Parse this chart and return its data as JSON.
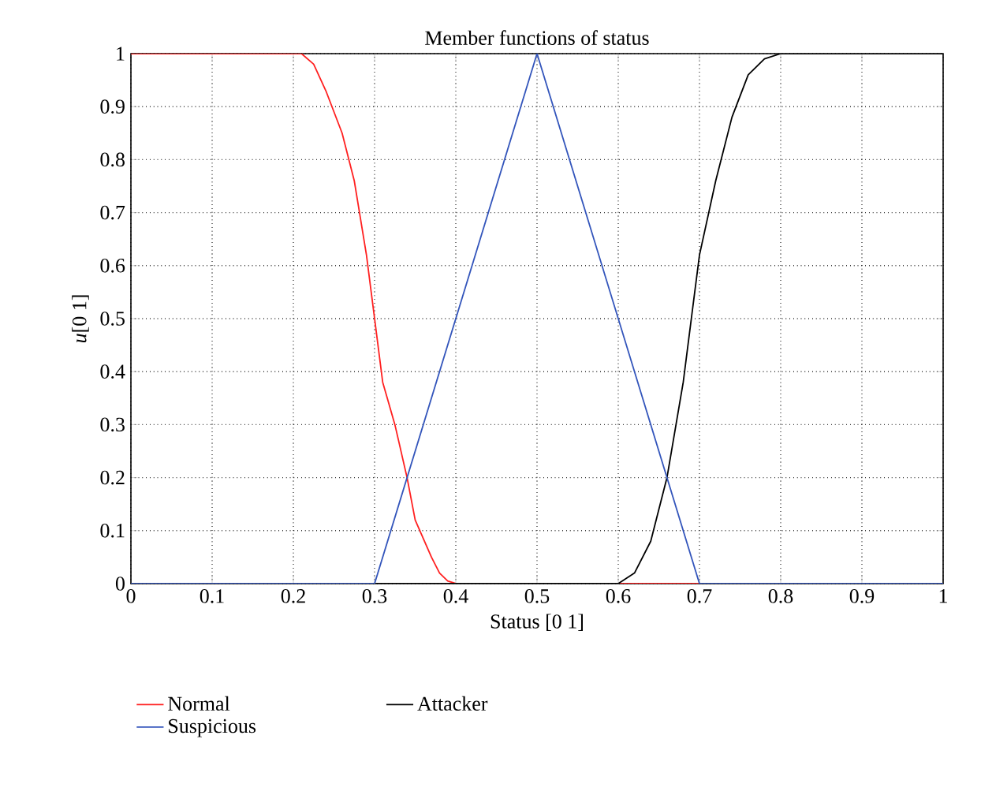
{
  "chart_data": {
    "type": "line",
    "title": "Member functions of status",
    "xlabel": "Status [0 1]",
    "ylabel": "*u*[0 1]",
    "xlim": [
      0,
      1
    ],
    "ylim": [
      0,
      1
    ],
    "xticks": [
      0,
      0.1,
      0.2,
      0.3,
      0.4,
      0.5,
      0.6,
      0.7,
      0.8,
      0.9,
      1
    ],
    "yticks": [
      0,
      0.1,
      0.2,
      0.3,
      0.4,
      0.5,
      0.6,
      0.7,
      0.8,
      0.9,
      1
    ],
    "grid": true,
    "legend": "bottom",
    "line_style": "solid",
    "marker": "none",
    "series": [
      {
        "name": "Normal",
        "color": "#ff2020",
        "x": [
          0,
          0.2,
          0.21,
          0.225,
          0.24,
          0.26,
          0.275,
          0.29,
          0.3,
          0.31,
          0.325,
          0.34,
          0.35,
          0.37,
          0.38,
          0.39,
          0.4,
          1
        ],
        "values": [
          1,
          1,
          1,
          0.98,
          0.93,
          0.85,
          0.76,
          0.62,
          0.5,
          0.38,
          0.3,
          0.2,
          0.12,
          0.05,
          0.02,
          0.005,
          0,
          0
        ]
      },
      {
        "name": "Suspicious",
        "color": "#3355bb",
        "x": [
          0,
          0.3,
          0.5,
          0.7,
          1
        ],
        "values": [
          0,
          0,
          1,
          0,
          0
        ]
      },
      {
        "name": "Attacker",
        "color": "#000000",
        "x": [
          0,
          0.6,
          0.62,
          0.64,
          0.66,
          0.68,
          0.69,
          0.7,
          0.72,
          0.74,
          0.76,
          0.78,
          0.8,
          1
        ],
        "values": [
          0,
          0,
          0.02,
          0.08,
          0.2,
          0.38,
          0.5,
          0.62,
          0.76,
          0.88,
          0.96,
          0.99,
          1,
          1
        ]
      }
    ]
  }
}
